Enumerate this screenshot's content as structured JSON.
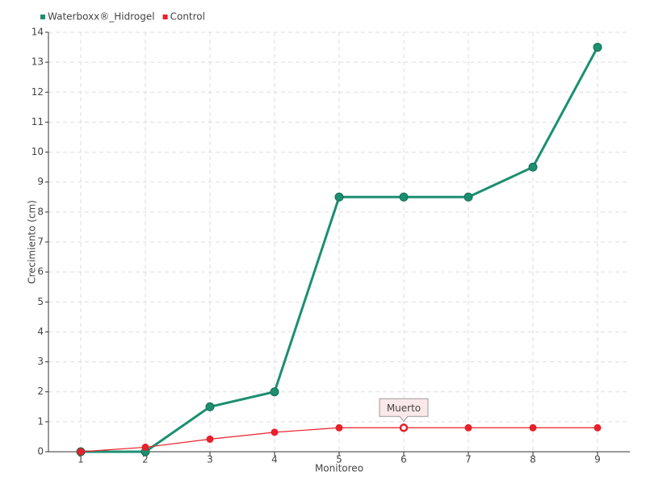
{
  "chart_data": {
    "type": "line",
    "x": [
      1,
      2,
      3,
      4,
      5,
      6,
      7,
      8,
      9
    ],
    "xlim": [
      0.5,
      9.5
    ],
    "xticks": [
      1,
      2,
      3,
      4,
      5,
      6,
      7,
      8,
      9
    ],
    "ylim": [
      0,
      14
    ],
    "yticks": [
      0,
      1,
      2,
      3,
      4,
      5,
      6,
      7,
      8,
      9,
      10,
      11,
      12,
      13,
      14
    ],
    "xlabel": "Monitoreo",
    "ylabel": "Crecimiento (cm)",
    "grid": true,
    "legend": "top-left",
    "series": [
      {
        "name": "Waterboxx®_Hidrogel",
        "color": "#1b8f72",
        "values": [
          0,
          0,
          1.5,
          2,
          8.5,
          8.5,
          8.5,
          9.5,
          13.5
        ]
      },
      {
        "name": "Control",
        "color": "#e8202a",
        "values": [
          0,
          0.15,
          0.42,
          0.65,
          0.8,
          0.8,
          0.8,
          0.8,
          0.8
        ]
      }
    ],
    "annotation": {
      "text": "Muerto",
      "x": 6,
      "y": 0.8
    }
  }
}
